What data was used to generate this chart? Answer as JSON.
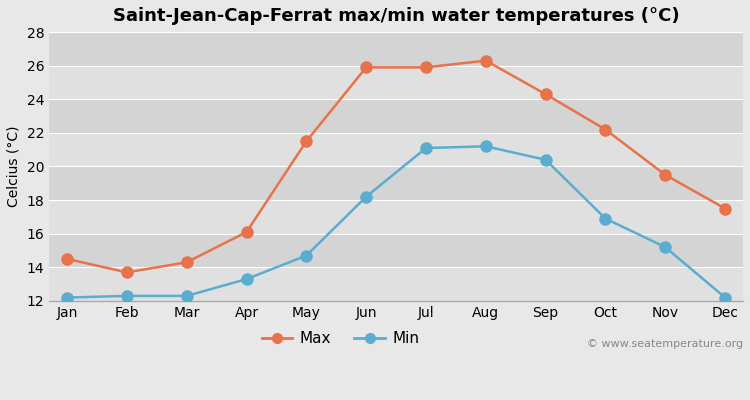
{
  "title": "Saint-Jean-Cap-Ferrat max/min water temperatures (°C)",
  "ylabel": "Celcius (°C)",
  "months": [
    "Jan",
    "Feb",
    "Mar",
    "Apr",
    "May",
    "Jun",
    "Jul",
    "Aug",
    "Sep",
    "Oct",
    "Nov",
    "Dec"
  ],
  "max_temps": [
    14.5,
    13.7,
    14.3,
    16.1,
    21.5,
    25.9,
    25.9,
    26.3,
    24.3,
    22.2,
    19.5,
    17.5
  ],
  "min_temps": [
    12.2,
    12.3,
    12.3,
    13.3,
    14.7,
    18.2,
    21.1,
    21.2,
    20.4,
    16.9,
    15.2,
    12.2
  ],
  "max_color": "#e8724a",
  "min_color": "#5aadcf",
  "figure_bg_color": "#e8e8e8",
  "plot_bg_color": "#ebebeb",
  "band_color_light": "#e0e0e0",
  "band_color_dark": "#d4d4d4",
  "grid_line_color": "#ffffff",
  "ylim": [
    12,
    28
  ],
  "yticks": [
    12,
    14,
    16,
    18,
    20,
    22,
    24,
    26,
    28
  ],
  "watermark": "© www.seatemperature.org",
  "title_fontsize": 13,
  "axis_label_fontsize": 10,
  "tick_fontsize": 10,
  "legend_fontsize": 11,
  "linewidth": 1.8,
  "markersize": 8
}
